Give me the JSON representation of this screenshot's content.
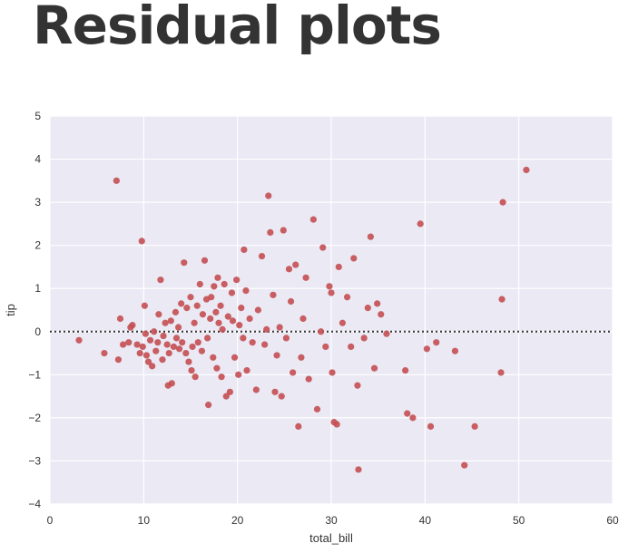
{
  "slide": {
    "title": "Residual plots"
  },
  "colors": {
    "plot_bg": "#eae9f4",
    "grid": "#ffffff",
    "points": "#c44e52",
    "zero_line": "#333333"
  },
  "chart_data": {
    "type": "scatter",
    "xlabel": "total_bill",
    "ylabel": "tip",
    "xlim": [
      0,
      60
    ],
    "ylim": [
      -4,
      5
    ],
    "xticks": [
      0,
      10,
      20,
      30,
      40,
      50,
      60
    ],
    "yticks": [
      -4,
      -3,
      -2,
      -1,
      0,
      1,
      2,
      3,
      4,
      5
    ],
    "grid": true,
    "reference_line": {
      "y": 0,
      "style": "dotted"
    },
    "series": [
      {
        "points": [
          [
            3.1,
            -0.2
          ],
          [
            5.8,
            -0.5
          ],
          [
            7.1,
            3.5
          ],
          [
            7.5,
            0.3
          ],
          [
            7.8,
            -0.3
          ],
          [
            8.6,
            0.1
          ],
          [
            9.3,
            -0.3
          ],
          [
            9.8,
            2.1
          ],
          [
            10.1,
            0.6
          ],
          [
            7.3,
            -0.65
          ],
          [
            8.4,
            -0.25
          ],
          [
            8.8,
            0.15
          ],
          [
            9.6,
            -0.5
          ],
          [
            9.9,
            -0.35
          ],
          [
            10.2,
            -0.05
          ],
          [
            10.3,
            -0.55
          ],
          [
            10.5,
            -0.7
          ],
          [
            10.7,
            -0.2
          ],
          [
            10.9,
            -0.8
          ],
          [
            11.1,
            0.0
          ],
          [
            11.3,
            -0.45
          ],
          [
            11.5,
            -0.25
          ],
          [
            11.6,
            0.4
          ],
          [
            11.8,
            1.2
          ],
          [
            12.0,
            -0.65
          ],
          [
            12.1,
            -0.1
          ],
          [
            12.3,
            0.2
          ],
          [
            12.5,
            -0.3
          ],
          [
            12.6,
            -1.25
          ],
          [
            12.7,
            -0.5
          ],
          [
            12.9,
            0.25
          ],
          [
            13.0,
            -1.2
          ],
          [
            13.2,
            -0.35
          ],
          [
            13.4,
            0.45
          ],
          [
            13.5,
            -0.15
          ],
          [
            13.7,
            0.1
          ],
          [
            13.8,
            -0.4
          ],
          [
            14.0,
            0.65
          ],
          [
            14.1,
            -0.25
          ],
          [
            14.3,
            1.6
          ],
          [
            14.5,
            -0.5
          ],
          [
            14.6,
            0.55
          ],
          [
            14.8,
            -0.7
          ],
          [
            15.0,
            0.8
          ],
          [
            15.1,
            -0.9
          ],
          [
            15.2,
            -0.35
          ],
          [
            15.4,
            0.2
          ],
          [
            15.5,
            -1.05
          ],
          [
            15.7,
            0.6
          ],
          [
            15.8,
            -0.25
          ],
          [
            16.0,
            1.1
          ],
          [
            16.2,
            -0.45
          ],
          [
            16.3,
            0.4
          ],
          [
            16.5,
            1.65
          ],
          [
            16.7,
            0.75
          ],
          [
            16.8,
            -0.15
          ],
          [
            16.9,
            -1.7
          ],
          [
            17.1,
            0.3
          ],
          [
            17.2,
            0.8
          ],
          [
            17.4,
            -0.6
          ],
          [
            17.5,
            1.05
          ],
          [
            17.7,
            0.45
          ],
          [
            17.8,
            -0.85
          ],
          [
            17.9,
            1.25
          ],
          [
            18.0,
            0.2
          ],
          [
            18.2,
            0.6
          ],
          [
            18.3,
            -1.05
          ],
          [
            18.4,
            0.05
          ],
          [
            18.6,
            1.1
          ],
          [
            18.8,
            -1.5
          ],
          [
            19.0,
            0.35
          ],
          [
            19.2,
            -1.4
          ],
          [
            19.4,
            0.9
          ],
          [
            19.5,
            0.25
          ],
          [
            19.7,
            -0.6
          ],
          [
            19.9,
            1.2
          ],
          [
            20.1,
            -1.0
          ],
          [
            20.2,
            0.15
          ],
          [
            20.4,
            0.55
          ],
          [
            20.6,
            -0.15
          ],
          [
            20.7,
            1.9
          ],
          [
            20.9,
            0.95
          ],
          [
            21.0,
            -0.9
          ],
          [
            21.3,
            0.3
          ],
          [
            21.6,
            -0.25
          ],
          [
            22.0,
            -1.35
          ],
          [
            22.2,
            0.5
          ],
          [
            22.6,
            1.75
          ],
          [
            22.9,
            -0.3
          ],
          [
            23.1,
            0.05
          ],
          [
            23.3,
            3.15
          ],
          [
            23.5,
            2.3
          ],
          [
            23.8,
            0.85
          ],
          [
            24.0,
            -1.4
          ],
          [
            24.2,
            -0.55
          ],
          [
            24.5,
            0.1
          ],
          [
            24.7,
            -1.5
          ],
          [
            24.9,
            2.35
          ],
          [
            25.2,
            -0.15
          ],
          [
            25.5,
            1.45
          ],
          [
            25.7,
            0.7
          ],
          [
            25.9,
            -0.95
          ],
          [
            26.2,
            1.55
          ],
          [
            26.5,
            -2.2
          ],
          [
            26.8,
            -0.6
          ],
          [
            27.0,
            0.3
          ],
          [
            27.3,
            1.25
          ],
          [
            27.6,
            -1.1
          ],
          [
            28.1,
            2.6
          ],
          [
            28.5,
            -1.8
          ],
          [
            28.9,
            0.0
          ],
          [
            29.1,
            1.95
          ],
          [
            29.4,
            -0.35
          ],
          [
            29.8,
            1.05
          ],
          [
            30.0,
            0.9
          ],
          [
            30.1,
            -0.95
          ],
          [
            30.3,
            -2.1
          ],
          [
            30.6,
            -2.15
          ],
          [
            30.8,
            1.5
          ],
          [
            31.2,
            0.2
          ],
          [
            31.7,
            0.8
          ],
          [
            32.1,
            -0.35
          ],
          [
            32.4,
            1.7
          ],
          [
            32.8,
            -1.25
          ],
          [
            32.9,
            -3.2
          ],
          [
            33.5,
            -0.15
          ],
          [
            33.9,
            0.55
          ],
          [
            34.2,
            2.2
          ],
          [
            34.6,
            -0.85
          ],
          [
            34.9,
            0.65
          ],
          [
            35.3,
            0.4
          ],
          [
            35.9,
            -0.05
          ],
          [
            37.9,
            -0.9
          ],
          [
            38.1,
            -1.9
          ],
          [
            38.7,
            -2.0
          ],
          [
            39.5,
            2.5
          ],
          [
            40.2,
            -0.4
          ],
          [
            40.6,
            -2.2
          ],
          [
            41.2,
            -0.25
          ],
          [
            43.2,
            -0.45
          ],
          [
            44.2,
            -3.1
          ],
          [
            45.3,
            -2.2
          ],
          [
            48.1,
            -0.95
          ],
          [
            48.2,
            0.75
          ],
          [
            48.3,
            3.0
          ],
          [
            50.8,
            3.75
          ]
        ]
      }
    ]
  }
}
